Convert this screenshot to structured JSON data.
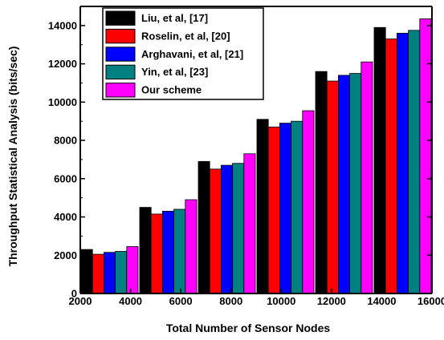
{
  "chart_data": {
    "type": "bar",
    "xlabel": "Total Number of Sensor Nodes",
    "ylabel": "Throughput Statistical Analysis  (bits/sec)",
    "ylim": [
      0,
      15000
    ],
    "y_ticks": [
      0,
      2000,
      4000,
      6000,
      8000,
      10000,
      12000,
      14000
    ],
    "x_tick_labels": [
      "2000",
      "4000",
      "6000",
      "8000",
      "10000",
      "12000",
      "14000",
      "16000"
    ],
    "groups": 6,
    "legend_position": "top-left",
    "series": [
      {
        "name": "Liu, et al, [17]",
        "color": "#000000",
        "values": [
          2300,
          4500,
          6900,
          9100,
          11600,
          13900
        ]
      },
      {
        "name": "Roselin, et al, [20]",
        "color": "#ff0000",
        "values": [
          2050,
          4150,
          6500,
          8700,
          11100,
          13300
        ]
      },
      {
        "name": "Arghavani, et al, [21]",
        "color": "#0000ff",
        "values": [
          2150,
          4300,
          6700,
          8900,
          11400,
          13600
        ]
      },
      {
        "name": "Yin, et al, [23]",
        "color": "#008080",
        "values": [
          2200,
          4400,
          6800,
          9000,
          11500,
          13750
        ]
      },
      {
        "name": "Our scheme",
        "color": "#ff00ff",
        "values": [
          2450,
          4900,
          7300,
          9550,
          12100,
          14350
        ]
      }
    ]
  }
}
